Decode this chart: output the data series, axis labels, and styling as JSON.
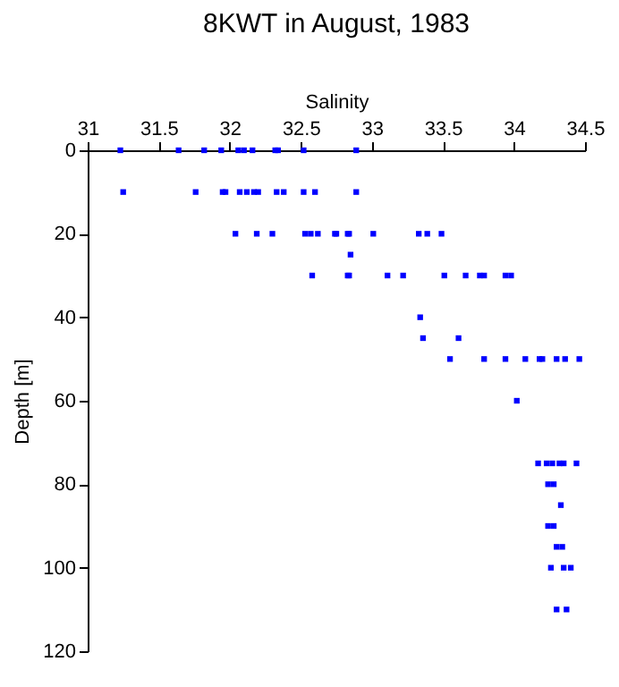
{
  "chart_data": {
    "type": "scatter",
    "title": "8KWT in August, 1983",
    "xlabel": "Salinity",
    "ylabel": "Depth [m]",
    "xlim": [
      31,
      34.5
    ],
    "xticks": [
      31,
      31.5,
      32,
      32.5,
      33,
      33.5,
      34,
      34.5
    ],
    "ylim": [
      120,
      0
    ],
    "yticks": [
      0,
      20,
      40,
      60,
      80,
      100,
      120
    ],
    "grid": false,
    "marker": "square",
    "series": [
      {
        "color": "#0000ff",
        "x": [
          31.23,
          31.64,
          31.82,
          31.94,
          32.06,
          32.1,
          32.16,
          32.32,
          32.34,
          32.52,
          32.89,
          31.25,
          31.76,
          31.95,
          31.97,
          32.07,
          32.12,
          32.17,
          32.2,
          32.33,
          32.38,
          32.52,
          32.6,
          32.89,
          32.04,
          32.19,
          32.3,
          32.53,
          32.57,
          32.62,
          32.74,
          32.75,
          32.83,
          32.84,
          33.01,
          33.33,
          33.39,
          33.49,
          32.85,
          32.58,
          32.83,
          32.84,
          33.11,
          33.22,
          33.51,
          33.66,
          33.76,
          33.79,
          33.94,
          33.98,
          33.34,
          33.36,
          33.61,
          33.55,
          33.79,
          33.94,
          34.08,
          34.18,
          34.2,
          34.3,
          34.36,
          34.46,
          34.02,
          34.17,
          34.23,
          34.27,
          34.32,
          34.35,
          34.44,
          34.24,
          34.28,
          34.33,
          34.24,
          34.28,
          34.3,
          34.34,
          34.26,
          34.35,
          34.4,
          34.3,
          34.37
        ],
        "values": [
          0,
          0,
          0,
          0,
          0,
          0,
          0,
          0,
          0,
          0,
          0,
          10,
          10,
          10,
          10,
          10,
          10,
          10,
          10,
          10,
          10,
          10,
          10,
          10,
          20,
          20,
          20,
          20,
          20,
          20,
          20,
          20,
          20,
          20,
          20,
          20,
          20,
          20,
          25,
          30,
          30,
          30,
          30,
          30,
          30,
          30,
          30,
          30,
          30,
          30,
          40,
          45,
          45,
          50,
          50,
          50,
          50,
          50,
          50,
          50,
          50,
          50,
          60,
          75,
          75,
          75,
          75,
          75,
          75,
          80,
          80,
          85,
          90,
          90,
          95,
          95,
          100,
          100,
          100,
          110,
          110
        ]
      }
    ]
  }
}
